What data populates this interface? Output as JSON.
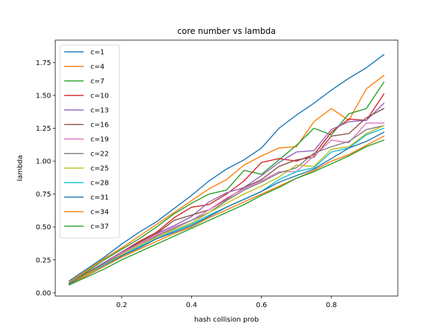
{
  "chart_data": {
    "type": "line",
    "title": "core number vs lambda",
    "xlabel": "hash collision prob",
    "ylabel": "lambda",
    "xlim": [
      0.01,
      0.99
    ],
    "ylim": [
      -0.025,
      1.92
    ],
    "xticks": [
      0.2,
      0.4,
      0.6,
      0.8
    ],
    "yticks": [
      0.0,
      0.25,
      0.5,
      0.75,
      1.0,
      1.25,
      1.5,
      1.75
    ],
    "xtick_labels": [
      "0.2",
      "0.4",
      "0.6",
      "0.8"
    ],
    "ytick_labels": [
      "0.00",
      "0.25",
      "0.50",
      "0.75",
      "1.00",
      "1.25",
      "1.50",
      "1.75"
    ],
    "grid": false,
    "legend_position": "top-left",
    "x": [
      0.05,
      0.1,
      0.15,
      0.2,
      0.25,
      0.3,
      0.35,
      0.4,
      0.45,
      0.5,
      0.55,
      0.6,
      0.65,
      0.7,
      0.75,
      0.8,
      0.85,
      0.9,
      0.95
    ],
    "series": [
      {
        "name": "c=1",
        "color": "#1f77b4",
        "values": [
          0.09,
          0.18,
          0.27,
          0.37,
          0.46,
          0.54,
          0.64,
          0.74,
          0.85,
          0.94,
          1.01,
          1.1,
          1.25,
          1.35,
          1.44,
          1.54,
          1.63,
          1.71,
          1.81
        ]
      },
      {
        "name": "c=4",
        "color": "#ff7f0e",
        "values": [
          0.08,
          0.17,
          0.26,
          0.34,
          0.43,
          0.52,
          0.61,
          0.7,
          0.79,
          0.86,
          0.97,
          1.04,
          1.1,
          1.11,
          1.3,
          1.4,
          1.31,
          1.55,
          1.65
        ]
      },
      {
        "name": "c=7",
        "color": "#2ca02c",
        "values": [
          0.07,
          0.16,
          0.25,
          0.33,
          0.41,
          0.5,
          0.6,
          0.68,
          0.75,
          0.78,
          0.93,
          0.9,
          1.01,
          1.12,
          1.25,
          1.2,
          1.36,
          1.4,
          1.6
        ]
      },
      {
        "name": "c=10",
        "color": "#d62728",
        "values": [
          0.07,
          0.15,
          0.23,
          0.31,
          0.39,
          0.46,
          0.57,
          0.65,
          0.67,
          0.75,
          0.85,
          0.99,
          1.02,
          1.0,
          1.05,
          1.22,
          1.32,
          1.31,
          1.51
        ]
      },
      {
        "name": "c=13",
        "color": "#9467bd",
        "values": [
          0.07,
          0.15,
          0.23,
          0.31,
          0.38,
          0.45,
          0.51,
          0.58,
          0.69,
          0.76,
          0.8,
          0.89,
          0.99,
          1.07,
          1.08,
          1.24,
          1.3,
          1.31,
          1.44
        ]
      },
      {
        "name": "c=16",
        "color": "#8c564b",
        "values": [
          0.07,
          0.15,
          0.22,
          0.3,
          0.38,
          0.45,
          0.55,
          0.59,
          0.63,
          0.71,
          0.8,
          0.86,
          0.96,
          1.01,
          1.03,
          1.19,
          1.21,
          1.33,
          1.4
        ]
      },
      {
        "name": "c=19",
        "color": "#e377c2",
        "values": [
          0.07,
          0.14,
          0.22,
          0.3,
          0.37,
          0.44,
          0.5,
          0.55,
          0.63,
          0.72,
          0.79,
          0.85,
          0.92,
          0.92,
          1.04,
          1.16,
          1.14,
          1.29,
          1.29
        ]
      },
      {
        "name": "c=22",
        "color": "#7f7f7f",
        "values": [
          0.07,
          0.14,
          0.22,
          0.29,
          0.36,
          0.43,
          0.49,
          0.55,
          0.61,
          0.7,
          0.78,
          0.84,
          0.91,
          0.95,
          1.06,
          1.11,
          1.15,
          1.24,
          1.27
        ]
      },
      {
        "name": "c=25",
        "color": "#bcbd22",
        "values": [
          0.07,
          0.14,
          0.21,
          0.29,
          0.36,
          0.42,
          0.48,
          0.53,
          0.61,
          0.68,
          0.75,
          0.81,
          0.88,
          0.97,
          0.96,
          1.09,
          1.11,
          1.21,
          1.27
        ]
      },
      {
        "name": "c=28",
        "color": "#17becf",
        "values": [
          0.07,
          0.13,
          0.21,
          0.28,
          0.35,
          0.41,
          0.47,
          0.52,
          0.59,
          0.65,
          0.71,
          0.77,
          0.86,
          0.92,
          0.95,
          1.07,
          1.1,
          1.2,
          1.25
        ]
      },
      {
        "name": "c=31",
        "color": "#1f77b4",
        "values": [
          0.07,
          0.13,
          0.2,
          0.28,
          0.34,
          0.41,
          0.46,
          0.51,
          0.58,
          0.65,
          0.71,
          0.77,
          0.84,
          0.89,
          0.94,
          1.02,
          1.1,
          1.15,
          1.22
        ]
      },
      {
        "name": "c=34",
        "color": "#ff7f0e",
        "values": [
          0.06,
          0.13,
          0.2,
          0.27,
          0.33,
          0.39,
          0.45,
          0.5,
          0.57,
          0.63,
          0.69,
          0.75,
          0.81,
          0.87,
          0.93,
          1.0,
          1.05,
          1.12,
          1.19
        ]
      },
      {
        "name": "c=37",
        "color": "#2ca02c",
        "values": [
          0.06,
          0.12,
          0.18,
          0.25,
          0.31,
          0.37,
          0.43,
          0.49,
          0.55,
          0.61,
          0.67,
          0.74,
          0.8,
          0.87,
          0.92,
          0.98,
          1.04,
          1.11,
          1.16
        ]
      }
    ]
  }
}
